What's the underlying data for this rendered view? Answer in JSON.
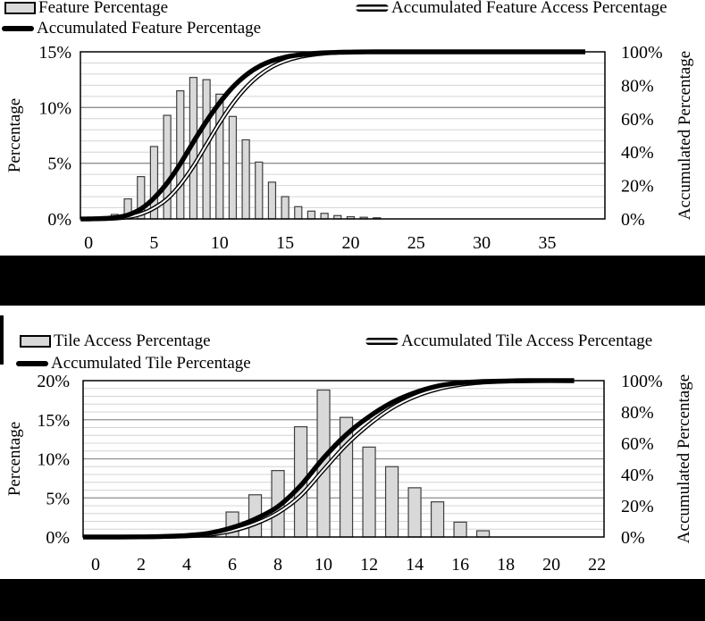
{
  "colors": {
    "bar_fill": "#d9d9d9",
    "bar_stroke": "#3f3f3f",
    "grid_minor": "#d4d4d4",
    "grid_major": "#8f8f8f",
    "axis_line": "#000000",
    "curve": "#000000",
    "caption_band": "#000000",
    "text": "#000000"
  },
  "chart_data": [
    {
      "type": "bar",
      "title": "",
      "legend": [
        {
          "label": "Feature Percentage",
          "swatch": "bar"
        },
        {
          "label": "Accumulated Feature Access Percentage",
          "swatch": "double-line"
        },
        {
          "label": "Accumulated Feature Percentage",
          "swatch": "thick-line"
        }
      ],
      "left_axis": {
        "title": "Percentage",
        "min": 0,
        "max": 15,
        "minor_step": 1,
        "major_step": 5,
        "ticks": {
          "values": [
            0,
            5,
            10,
            15
          ],
          "labels": [
            "0%",
            "5%",
            "10%",
            "15%"
          ]
        }
      },
      "right_axis": {
        "title": "Accumulated Percentage",
        "min": 0,
        "max": 100,
        "ticks": {
          "values": [
            0,
            20,
            40,
            60,
            80,
            100
          ],
          "labels": [
            "0%",
            "20%",
            "40%",
            "60%",
            "80%",
            "100%"
          ]
        }
      },
      "x_axis": {
        "domain": [
          -0.62,
          39.4
        ],
        "ticks": {
          "values": [
            0,
            5,
            10,
            15,
            20,
            25,
            30,
            35
          ],
          "labels": [
            "0",
            "5",
            "10",
            "15",
            "20",
            "25",
            "30",
            "35"
          ]
        }
      },
      "bars": {
        "name": "Feature Percentage",
        "x": [
          1,
          2,
          3,
          4,
          5,
          6,
          7,
          8,
          9,
          10,
          11,
          12,
          13,
          14,
          15,
          16,
          17,
          18,
          19,
          20,
          21,
          22
        ],
        "values": [
          0.1,
          0.4,
          1.8,
          3.8,
          6.5,
          9.3,
          11.5,
          12.7,
          12.5,
          11.2,
          9.2,
          7.1,
          5.1,
          3.3,
          2.0,
          1.1,
          0.7,
          0.5,
          0.3,
          0.2,
          0.15,
          0.1
        ]
      },
      "series": [
        {
          "name": "Accumulated Feature Access Percentage",
          "style": "double",
          "points": [
            [
              -0.6,
              0
            ],
            [
              0,
              0
            ],
            [
              1,
              0.1
            ],
            [
              2,
              0.35
            ],
            [
              3,
              1.1
            ],
            [
              4,
              3
            ],
            [
              5,
              6.5
            ],
            [
              6,
              12
            ],
            [
              7,
              20.5
            ],
            [
              8,
              31.5
            ],
            [
              9,
              44.5
            ],
            [
              10,
              57.5
            ],
            [
              11,
              69
            ],
            [
              12,
              78.5
            ],
            [
              13,
              85.8
            ],
            [
              14,
              91
            ],
            [
              15,
              94.5
            ],
            [
              16,
              96.8
            ],
            [
              17,
              98.2
            ],
            [
              18,
              99.1
            ],
            [
              19,
              99.6
            ],
            [
              20,
              99.8
            ],
            [
              21,
              99.9
            ],
            [
              22,
              100
            ],
            [
              26,
              100
            ],
            [
              31,
              100
            ],
            [
              37,
              100
            ]
          ]
        },
        {
          "name": "Accumulated Feature Percentage",
          "style": "thick",
          "points": [
            [
              -0.6,
              0
            ],
            [
              0,
              0
            ],
            [
              1,
              0.2
            ],
            [
              2,
              0.7
            ],
            [
              3,
              2.3
            ],
            [
              4,
              6
            ],
            [
              5,
              12.5
            ],
            [
              6,
              21.5
            ],
            [
              7,
              33
            ],
            [
              8,
              46
            ],
            [
              9,
              58.5
            ],
            [
              10,
              69.5
            ],
            [
              11,
              78.8
            ],
            [
              12,
              86
            ],
            [
              13,
              91.2
            ],
            [
              14,
              94.6
            ],
            [
              15,
              96.8
            ],
            [
              16,
              98.1
            ],
            [
              17,
              98.9
            ],
            [
              18,
              99.4
            ],
            [
              19,
              99.7
            ],
            [
              20,
              99.85
            ],
            [
              21,
              99.95
            ],
            [
              22,
              100
            ],
            [
              26,
              100
            ],
            [
              32,
              100
            ],
            [
              37.9,
              100
            ]
          ]
        }
      ]
    },
    {
      "type": "bar",
      "title": "",
      "legend": [
        {
          "label": "Tile Access Percentage",
          "swatch": "bar"
        },
        {
          "label": "Accumulated Tile Access Percentage",
          "swatch": "double-line"
        },
        {
          "label": "Accumulated Tile Percentage",
          "swatch": "thick-line"
        }
      ],
      "left_axis": {
        "title": "Percentage",
        "min": 0,
        "max": 20,
        "minor_step": 1,
        "major_step": 5,
        "ticks": {
          "values": [
            0,
            5,
            10,
            15,
            20
          ],
          "labels": [
            "0%",
            "5%",
            "10%",
            "15%",
            "20%"
          ]
        }
      },
      "right_axis": {
        "title": "Accumulated Percentage",
        "min": 0,
        "max": 100,
        "ticks": {
          "values": [
            0,
            20,
            40,
            60,
            80,
            100
          ],
          "labels": [
            "0%",
            "20%",
            "40%",
            "60%",
            "80%",
            "100%"
          ]
        }
      },
      "x_axis": {
        "domain": [
          -0.55,
          22.31
        ],
        "ticks": {
          "values": [
            0,
            2,
            4,
            6,
            8,
            10,
            12,
            14,
            16,
            18,
            20,
            22
          ],
          "labels": [
            "0",
            "2",
            "4",
            "6",
            "8",
            "10",
            "12",
            "14",
            "16",
            "18",
            "20",
            "22"
          ]
        }
      },
      "bars": {
        "name": "Tile Access Percentage",
        "x": [
          5,
          6,
          7,
          8,
          9,
          10,
          11,
          12,
          13,
          14,
          15,
          16,
          17
        ],
        "values": [
          0.6,
          3.2,
          5.4,
          8.5,
          14.1,
          18.8,
          15.3,
          11.5,
          9.0,
          6.3,
          4.5,
          1.9,
          0.8
        ]
      },
      "series": [
        {
          "name": "Accumulated Tile Access Percentage",
          "style": "double",
          "points": [
            [
              -0.55,
              0
            ],
            [
              0,
              0
            ],
            [
              2,
              0
            ],
            [
              3,
              0.2
            ],
            [
              4,
              0.6
            ],
            [
              5,
              1.5
            ],
            [
              6,
              4
            ],
            [
              7,
              8.5
            ],
            [
              8,
              15.5
            ],
            [
              9,
              26.5
            ],
            [
              10,
              43
            ],
            [
              11,
              59
            ],
            [
              12,
              72
            ],
            [
              13,
              82.5
            ],
            [
              14,
              89.8
            ],
            [
              15,
              94.6
            ],
            [
              16,
              97.4
            ],
            [
              17,
              98.9
            ],
            [
              18,
              99.6
            ],
            [
              19,
              99.9
            ],
            [
              20,
              100
            ],
            [
              20.9,
              100
            ]
          ]
        },
        {
          "name": "Accumulated Tile Percentage",
          "style": "thick",
          "points": [
            [
              -0.55,
              0
            ],
            [
              0,
              0
            ],
            [
              1,
              0
            ],
            [
              2,
              0.1
            ],
            [
              3,
              0.4
            ],
            [
              4,
              1
            ],
            [
              5,
              2.5
            ],
            [
              6,
              6
            ],
            [
              7,
              11.5
            ],
            [
              8,
              19.5
            ],
            [
              9,
              33
            ],
            [
              10,
              50.5
            ],
            [
              11,
              65.5
            ],
            [
              12,
              77
            ],
            [
              13,
              86
            ],
            [
              14,
              92.3
            ],
            [
              15,
              96.5
            ],
            [
              16,
              98.6
            ],
            [
              17,
              99.4
            ],
            [
              18,
              99.8
            ],
            [
              19,
              100
            ],
            [
              21,
              100
            ]
          ]
        }
      ]
    }
  ]
}
